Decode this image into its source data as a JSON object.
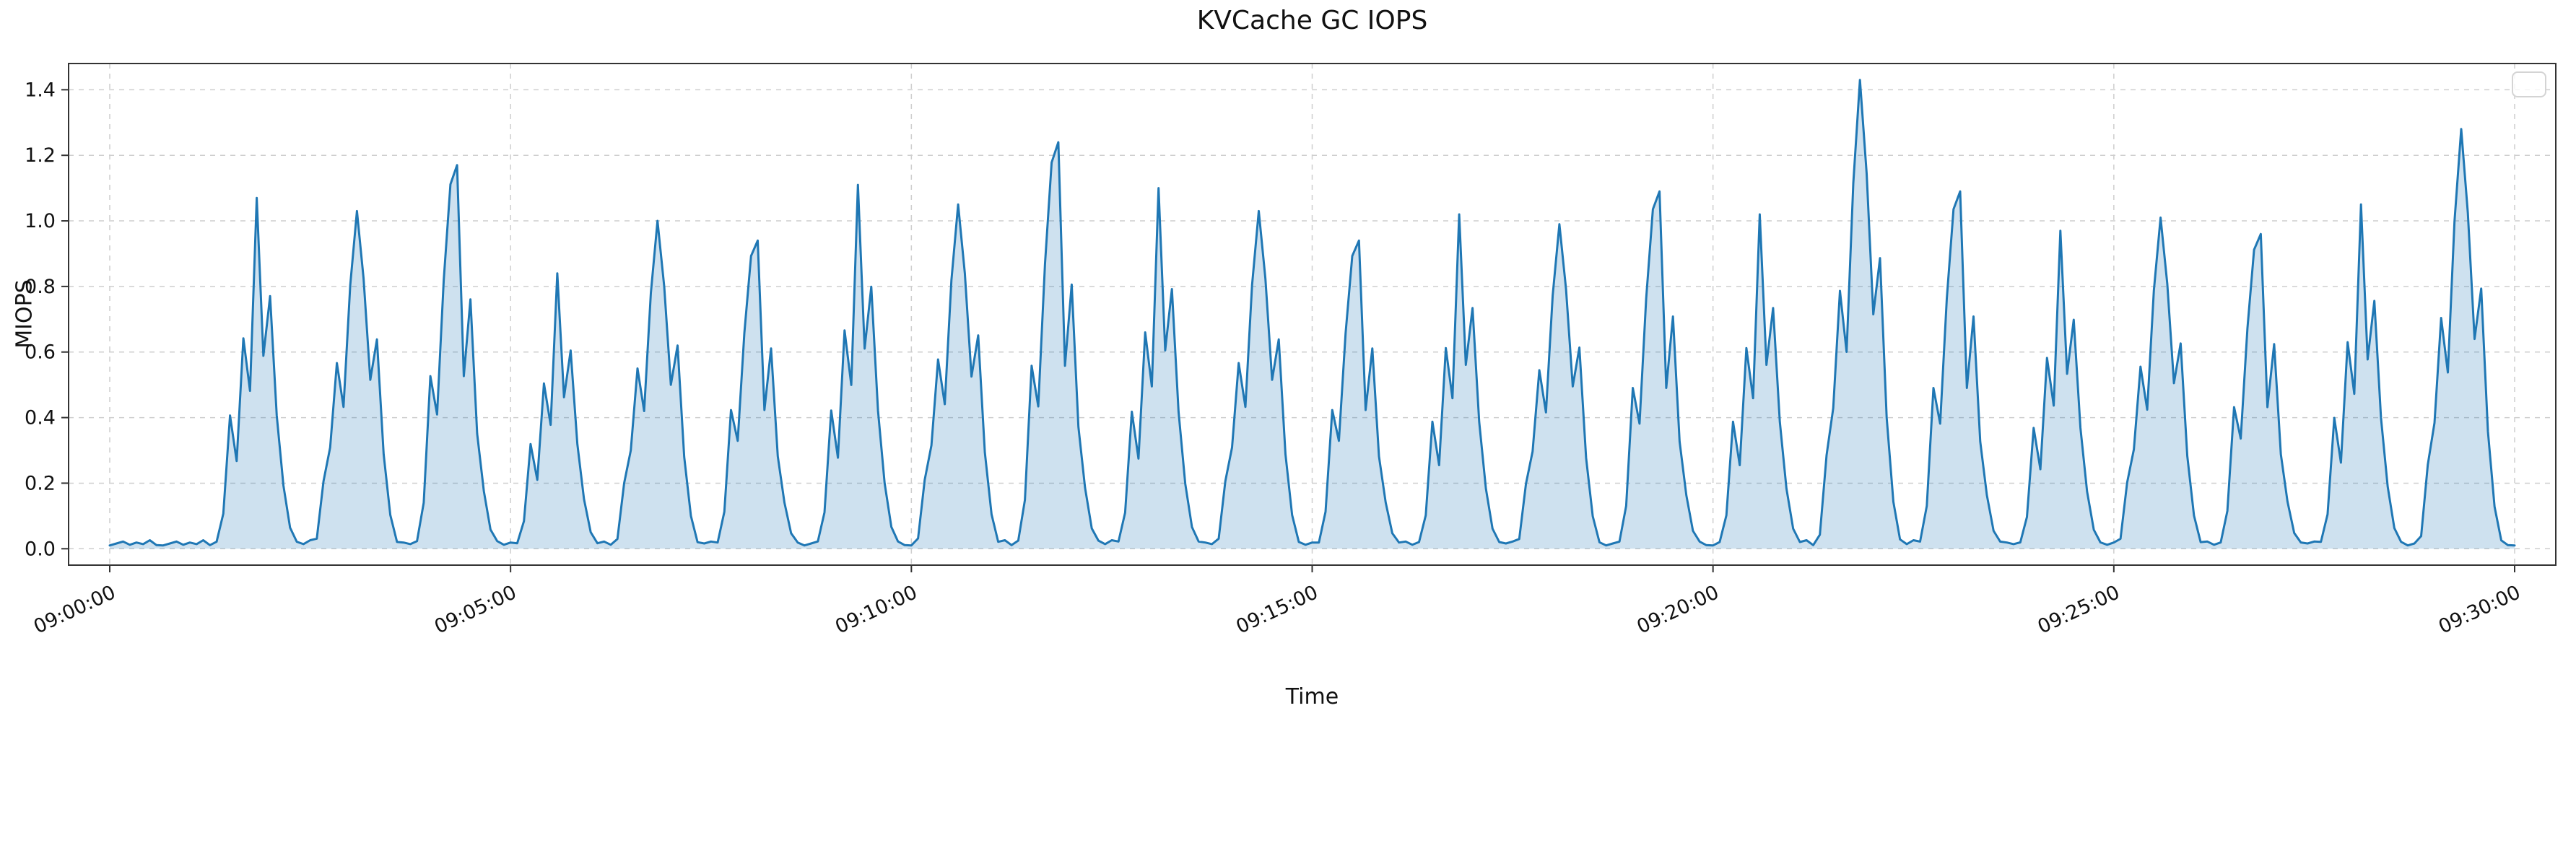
{
  "chart_data": {
    "type": "area",
    "title": "KVCache GC IOPS",
    "xlabel": "Time",
    "ylabel": "MIOPS",
    "x_range_s": 1800,
    "sample_interval_s": 5,
    "x_tick_seconds": [
      0,
      300,
      600,
      900,
      1200,
      1500,
      1800
    ],
    "x_tick_labels": [
      "09:00:00",
      "09:05:00",
      "09:10:00",
      "09:15:00",
      "09:20:00",
      "09:25:00",
      "09:30:00"
    ],
    "y_ticks": [
      0.0,
      0.2,
      0.4,
      0.6,
      0.8,
      1.0,
      1.2,
      1.4
    ],
    "ylim": [
      -0.05,
      1.48
    ],
    "grid": true,
    "legend": {
      "visible": true,
      "entries": []
    },
    "colors": {
      "line": "#1f77b4",
      "fill": "#1f77b4",
      "fill_opacity": 0.22,
      "grid": "#c9c9c9",
      "spine": "#333333",
      "text": "#111111",
      "legend_border": "#d4d4d4"
    },
    "baseline": 0.008,
    "baseline_jitter": [
      0.002,
      0.008,
      0.014,
      0.004,
      0.011,
      0.006,
      0.018,
      0.003
    ],
    "shapes": {
      "A": [
        0.02,
        0.1,
        0.38,
        0.25,
        0.6,
        0.45,
        1.0,
        0.55,
        0.72,
        0.38,
        0.18,
        0.06,
        0.02
      ],
      "B": [
        0.03,
        0.2,
        0.3,
        0.55,
        0.42,
        0.78,
        1.0,
        0.8,
        0.5,
        0.62,
        0.28,
        0.1,
        0.02
      ],
      "C": [
        0.02,
        0.12,
        0.45,
        0.35,
        0.7,
        0.95,
        1.0,
        0.45,
        0.65,
        0.3,
        0.15,
        0.05,
        0.02
      ]
    },
    "bursts": [
      {
        "t": 110,
        "peak": 1.07,
        "shape": "A"
      },
      {
        "t": 185,
        "peak": 1.03,
        "shape": "B"
      },
      {
        "t": 260,
        "peak": 1.17,
        "shape": "C"
      },
      {
        "t": 335,
        "peak": 0.84,
        "shape": "A"
      },
      {
        "t": 410,
        "peak": 1.0,
        "shape": "B"
      },
      {
        "t": 485,
        "peak": 0.94,
        "shape": "C"
      },
      {
        "t": 560,
        "peak": 1.11,
        "shape": "A"
      },
      {
        "t": 635,
        "peak": 1.05,
        "shape": "B"
      },
      {
        "t": 710,
        "peak": 1.24,
        "shape": "C"
      },
      {
        "t": 785,
        "peak": 1.1,
        "shape": "A"
      },
      {
        "t": 860,
        "peak": 1.03,
        "shape": "B"
      },
      {
        "t": 935,
        "peak": 0.94,
        "shape": "C"
      },
      {
        "t": 1010,
        "peak": 1.02,
        "shape": "A"
      },
      {
        "t": 1085,
        "peak": 0.99,
        "shape": "B"
      },
      {
        "t": 1160,
        "peak": 1.09,
        "shape": "C"
      },
      {
        "t": 1235,
        "peak": 1.02,
        "shape": "A"
      },
      {
        "t": 1310,
        "peak": 1.43,
        "shape": "B"
      },
      {
        "t": 1385,
        "peak": 1.09,
        "shape": "C"
      },
      {
        "t": 1460,
        "peak": 0.97,
        "shape": "A"
      },
      {
        "t": 1535,
        "peak": 1.01,
        "shape": "B"
      },
      {
        "t": 1610,
        "peak": 0.96,
        "shape": "C"
      },
      {
        "t": 1685,
        "peak": 1.05,
        "shape": "A"
      },
      {
        "t": 1760,
        "peak": 1.28,
        "shape": "B"
      }
    ]
  }
}
